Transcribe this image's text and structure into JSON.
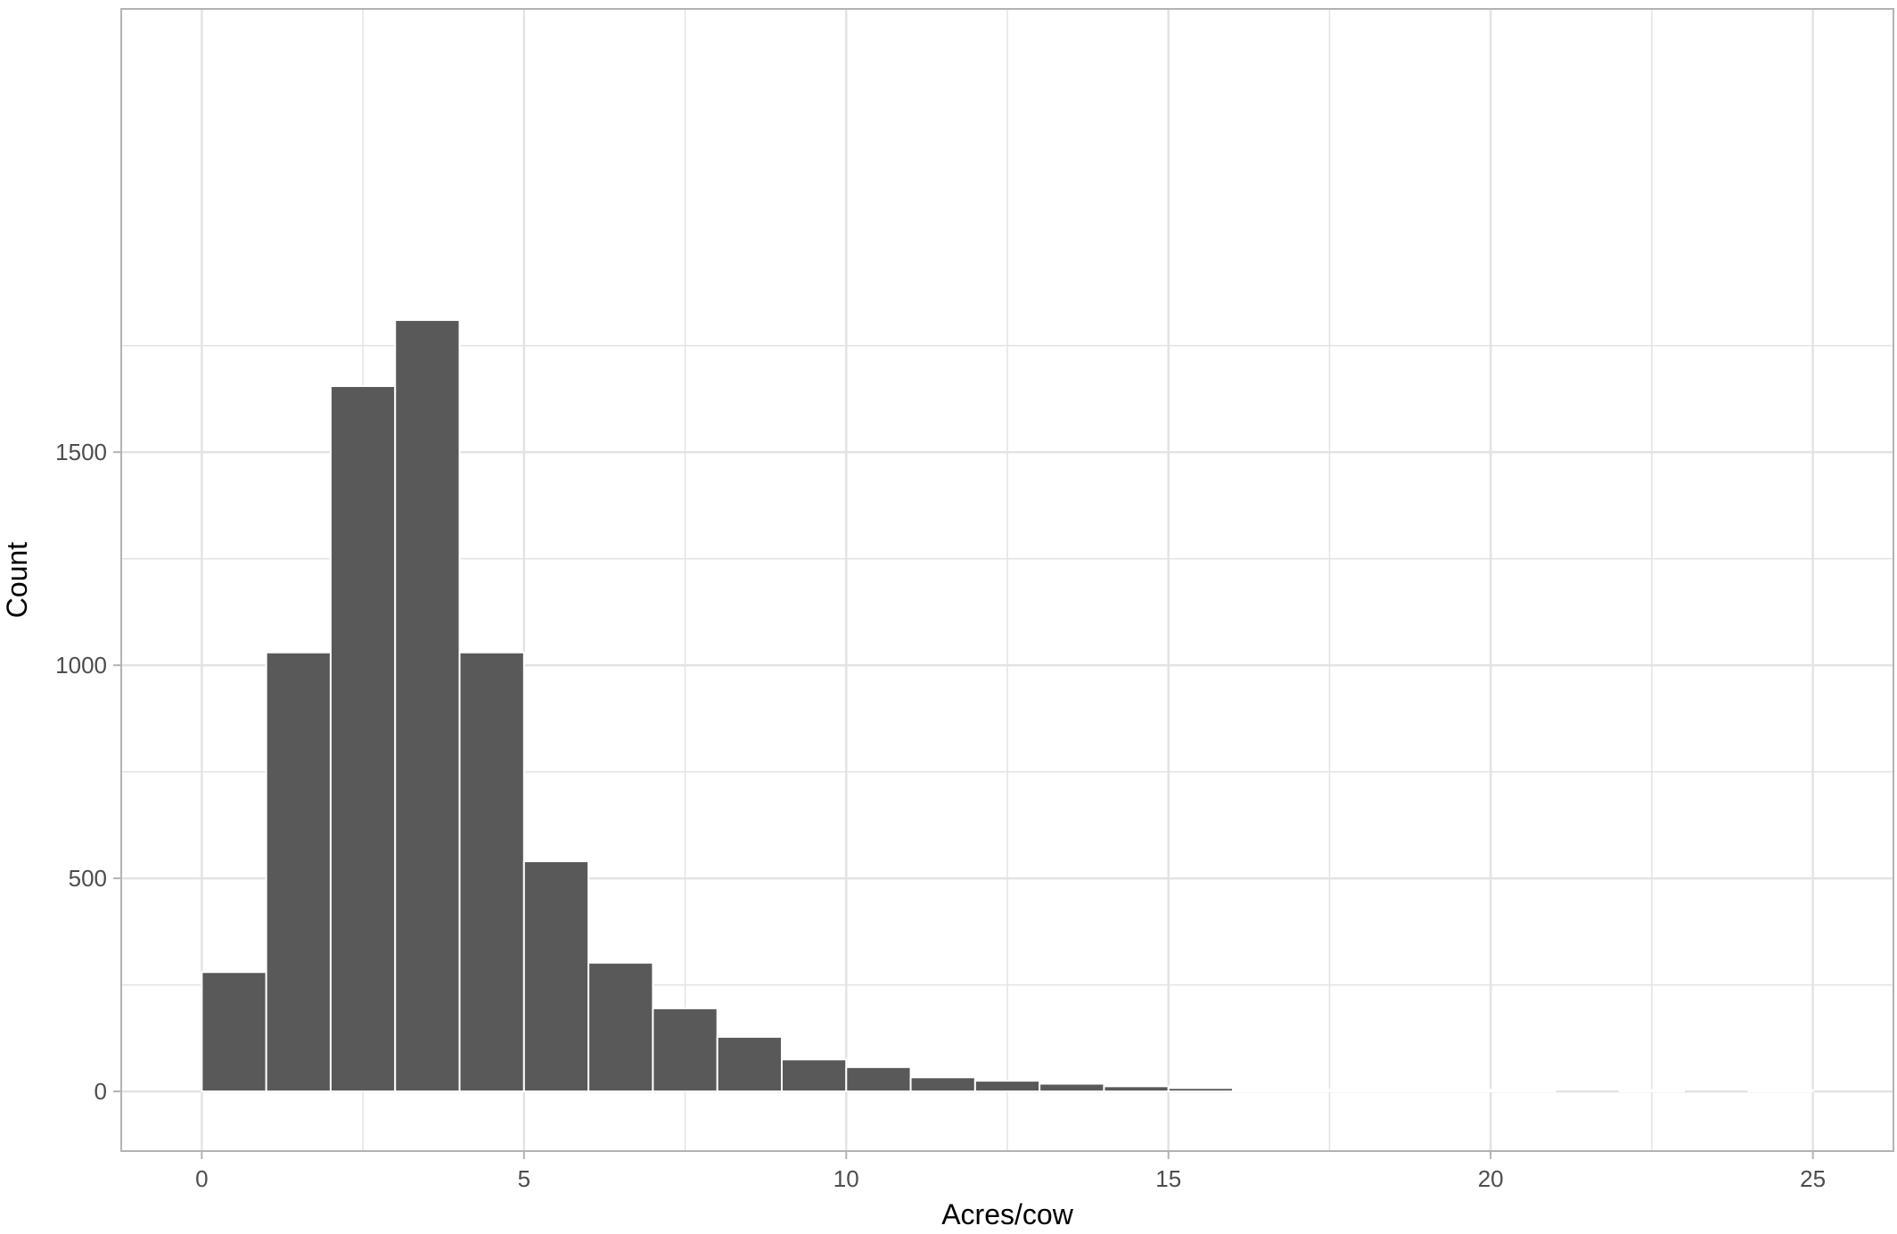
{
  "chart_data": {
    "type": "bar",
    "subtype": "histogram",
    "title": "",
    "xlabel": "Acres/cow",
    "ylabel": "Count",
    "xlim": [
      -1.25,
      26.25
    ],
    "ylim": [
      -140,
      2540
    ],
    "x_ticks": [
      0,
      5,
      10,
      15,
      20,
      25
    ],
    "x_tick_labels": [
      "0",
      "5",
      "10",
      "15",
      "20",
      "25"
    ],
    "y_ticks": [
      0,
      500,
      1000,
      1500
    ],
    "y_tick_labels": [
      "0",
      "500",
      "1000",
      "1500"
    ],
    "x_minor_gridlines": [
      2.5,
      7.5,
      12.5,
      17.5,
      22.5
    ],
    "y_minor_gridlines": [
      250,
      750,
      1250,
      1750
    ],
    "bin_width": 1,
    "bins": [
      {
        "start": 0,
        "end": 1,
        "count": 280
      },
      {
        "start": 1,
        "end": 2,
        "count": 1030
      },
      {
        "start": 2,
        "end": 3,
        "count": 1655
      },
      {
        "start": 3,
        "end": 4,
        "count": 1810
      },
      {
        "start": 4,
        "end": 5,
        "count": 1030
      },
      {
        "start": 5,
        "end": 6,
        "count": 540
      },
      {
        "start": 6,
        "end": 7,
        "count": 302
      },
      {
        "start": 7,
        "end": 8,
        "count": 195
      },
      {
        "start": 8,
        "end": 9,
        "count": 128
      },
      {
        "start": 9,
        "end": 10,
        "count": 75
      },
      {
        "start": 10,
        "end": 11,
        "count": 57
      },
      {
        "start": 11,
        "end": 12,
        "count": 33
      },
      {
        "start": 12,
        "end": 13,
        "count": 25
      },
      {
        "start": 13,
        "end": 14,
        "count": 18
      },
      {
        "start": 14,
        "end": 15,
        "count": 12
      },
      {
        "start": 15,
        "end": 16,
        "count": 8
      },
      {
        "start": 16,
        "end": 17,
        "count": 4
      },
      {
        "start": 17,
        "end": 18,
        "count": 1
      },
      {
        "start": 18,
        "end": 19,
        "count": 1
      },
      {
        "start": 19,
        "end": 20,
        "count": 4
      },
      {
        "start": 20,
        "end": 21,
        "count": 1
      },
      {
        "start": 21,
        "end": 22,
        "count": 0
      },
      {
        "start": 22,
        "end": 23,
        "count": 1
      },
      {
        "start": 23,
        "end": 24,
        "count": 0
      },
      {
        "start": 24,
        "end": 25,
        "count": 1
      }
    ],
    "grid": true,
    "legend": "none",
    "colors": {
      "bar_fill": "#595959",
      "bar_outline": "#ffffff",
      "grid": "#e3e3e3",
      "panel_border": "#b3b3b3",
      "tick_label": "#4d4d4d"
    }
  }
}
